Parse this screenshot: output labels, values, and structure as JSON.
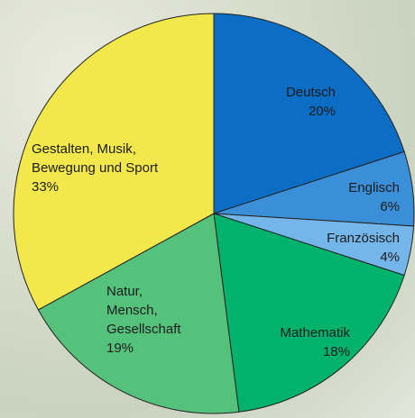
{
  "chart_data": {
    "type": "pie",
    "categories": [
      "Deutsch",
      "Englisch",
      "Französisch",
      "Mathematik",
      "Natur,\nMensch,\nGesellschaft",
      "Gestalten, Musik,\nBewegung und Sport"
    ],
    "values": [
      20,
      6,
      4,
      18,
      19,
      33
    ],
    "value_labels": [
      "20%",
      "6%",
      "4%",
      "18%",
      "19%",
      "33%"
    ],
    "colors": [
      "#0b6dc4",
      "#3a8fd8",
      "#74b6ea",
      "#00b26c",
      "#55c27c",
      "#f2e84c"
    ]
  }
}
